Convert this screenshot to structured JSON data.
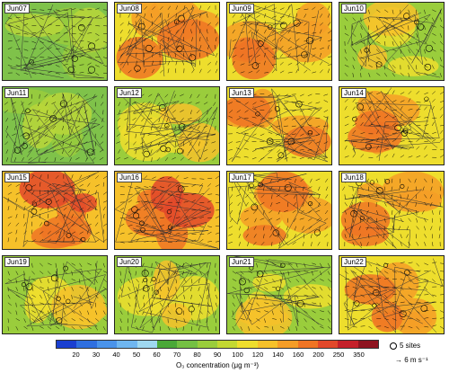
{
  "panels": [
    {
      "label": "Jun07",
      "level": 1
    },
    {
      "label": "Jun08",
      "level": 3
    },
    {
      "label": "Jun09",
      "level": 3
    },
    {
      "label": "Jun10",
      "level": 2
    },
    {
      "label": "Jun11",
      "level": 1
    },
    {
      "label": "Jun12",
      "level": 2
    },
    {
      "label": "Jun13",
      "level": 3
    },
    {
      "label": "Jun14",
      "level": 3
    },
    {
      "label": "Jun15",
      "level": 4
    },
    {
      "label": "Jun16",
      "level": 4
    },
    {
      "label": "Jun17",
      "level": 3
    },
    {
      "label": "Jun18",
      "level": 3
    },
    {
      "label": "Jun19",
      "level": 2
    },
    {
      "label": "Jun20",
      "level": 2
    },
    {
      "label": "Jun21",
      "level": 2
    },
    {
      "label": "Jun22",
      "level": 3
    }
  ],
  "colorbar": {
    "ticks": [
      "20",
      "30",
      "40",
      "50",
      "60",
      "70",
      "80",
      "90",
      "100",
      "120",
      "140",
      "160",
      "200",
      "250",
      "350"
    ],
    "colors": [
      "#1a3fd1",
      "#2f6fe0",
      "#4a93ea",
      "#6fb6f0",
      "#9fd8f0",
      "#4aa838",
      "#74c043",
      "#9acd3c",
      "#c3d832",
      "#eede2d",
      "#f6c12a",
      "#f59d27",
      "#ef7424",
      "#e2482a",
      "#c4202a",
      "#8e1420"
    ],
    "title": "O₃ concentration (μg m⁻³)"
  },
  "legend": {
    "sites_label": "5 sites",
    "wind_label": "6 m s⁻¹"
  },
  "icons": {
    "site_marker": "circle-outline-icon",
    "wind_vector": "arrow-icon"
  }
}
